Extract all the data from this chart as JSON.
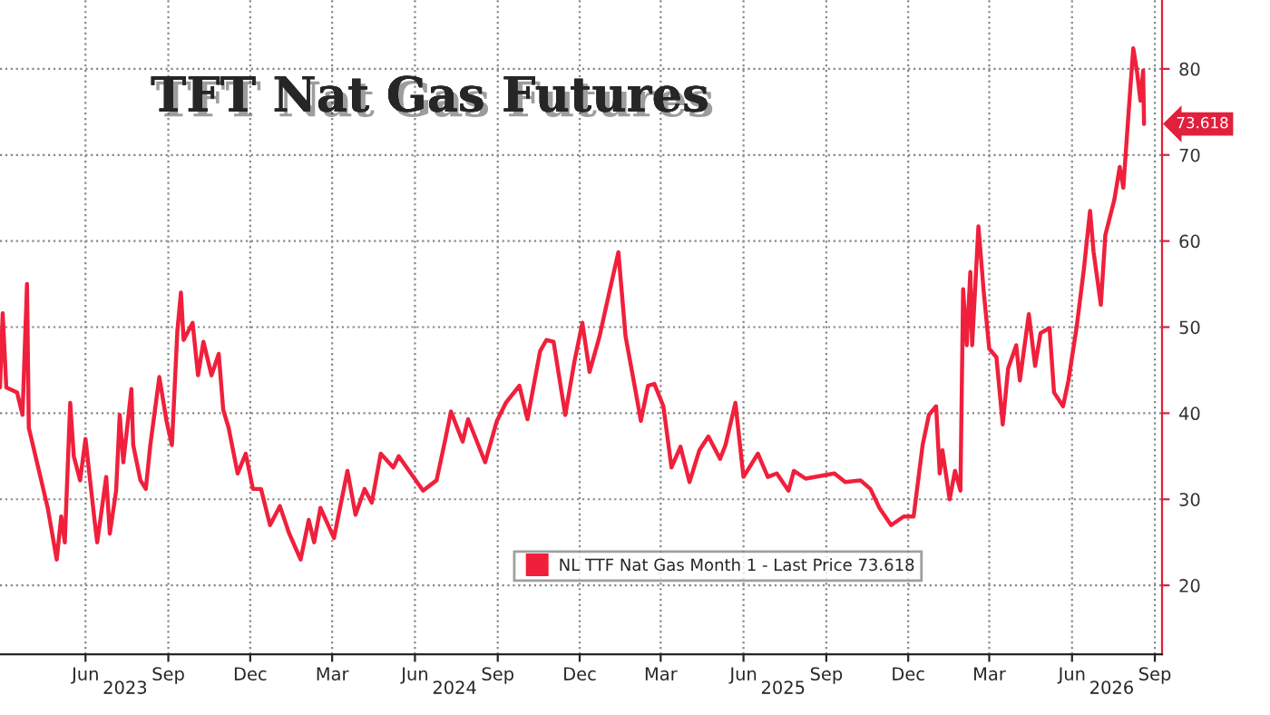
{
  "chart_data": {
    "type": "line",
    "title": "TFT Nat Gas Futures",
    "x": [
      "2023-02-26",
      "2023-03-01",
      "2023-03-05",
      "2023-03-17",
      "2023-03-23",
      "2023-03-28",
      "2023-03-30",
      "2023-04-11",
      "2023-04-20",
      "2023-04-30",
      "2023-05-05",
      "2023-05-09",
      "2023-05-15",
      "2023-05-19",
      "2023-05-26",
      "2023-06-01",
      "2023-06-11",
      "2023-06-14",
      "2023-06-24",
      "2023-06-28",
      "2023-07-05",
      "2023-07-09",
      "2023-07-13",
      "2023-07-22",
      "2023-07-24",
      "2023-08-01",
      "2023-08-07",
      "2023-08-12",
      "2023-08-22",
      "2023-08-30",
      "2023-09-05",
      "2023-09-11",
      "2023-09-15",
      "2023-09-18",
      "2023-09-28",
      "2023-10-04",
      "2023-10-10",
      "2023-10-19",
      "2023-10-27",
      "2023-11-01",
      "2023-11-07",
      "2023-11-17",
      "2023-11-26",
      "2023-12-04",
      "2023-12-13",
      "2023-12-23",
      "2024-01-03",
      "2024-01-13",
      "2024-01-26",
      "2024-02-04",
      "2024-02-10",
      "2024-02-17",
      "2024-03-03",
      "2024-03-18",
      "2024-03-27",
      "2024-04-06",
      "2024-04-14",
      "2024-04-24",
      "2024-05-08",
      "2024-05-14",
      "2024-06-10",
      "2024-06-25",
      "2024-07-05",
      "2024-07-11",
      "2024-07-24",
      "2024-07-30",
      "2024-08-18",
      "2024-08-31",
      "2024-09-10",
      "2024-09-25",
      "2024-10-04",
      "2024-10-18",
      "2024-10-25",
      "2024-11-02",
      "2024-11-15",
      "2024-11-25",
      "2024-12-04",
      "2024-12-12",
      "2024-12-23",
      "2025-01-02",
      "2025-01-13",
      "2025-01-21",
      "2025-01-31",
      "2025-02-07",
      "2025-02-15",
      "2025-02-22",
      "2025-03-04",
      "2025-03-13",
      "2025-03-23",
      "2025-04-02",
      "2025-04-13",
      "2025-04-23",
      "2025-05-06",
      "2025-05-12",
      "2025-05-23",
      "2025-06-01",
      "2025-06-17",
      "2025-06-28",
      "2025-07-08",
      "2025-07-21",
      "2025-07-27",
      "2025-08-09",
      "2025-09-10",
      "2025-09-22",
      "2025-10-09",
      "2025-10-20",
      "2025-10-30",
      "2025-11-12",
      "2025-11-26",
      "2025-12-07",
      "2025-12-17",
      "2025-12-24",
      "2026-01-01",
      "2026-01-05",
      "2026-01-08",
      "2026-01-16",
      "2026-01-22",
      "2026-01-28",
      "2026-01-31",
      "2026-02-04",
      "2026-02-08",
      "2026-02-10",
      "2026-02-17",
      "2026-02-23",
      "2026-03-01",
      "2026-03-09",
      "2026-03-16",
      "2026-03-22",
      "2026-03-31",
      "2026-04-04",
      "2026-04-14",
      "2026-04-21",
      "2026-04-27",
      "2026-05-07",
      "2026-05-12",
      "2026-05-22",
      "2026-05-28",
      "2026-06-06",
      "2026-06-14",
      "2026-06-21",
      "2026-06-25",
      "2026-07-03",
      "2026-07-08",
      "2026-07-18",
      "2026-07-24",
      "2026-07-28",
      "2026-08-02",
      "2026-08-08",
      "2026-08-12",
      "2026-08-16",
      "2026-08-19",
      "2026-08-20"
    ],
    "series": [
      {
        "name": "NL TTF Nat Gas Month 1 - Last Price 73.618",
        "color": "#f0203c",
        "values": [
          43,
          51.6,
          43,
          42.4,
          39.8,
          55,
          38.3,
          33,
          29,
          23,
          28,
          25,
          41.2,
          35,
          32.2,
          37,
          27.6,
          25,
          32.6,
          26,
          31,
          39.8,
          34.3,
          42.8,
          36.3,
          32.2,
          31.2,
          36.3,
          44.2,
          39.1,
          36.3,
          49.5,
          54,
          48.5,
          50.5,
          44.4,
          48.3,
          44.4,
          46.9,
          40.4,
          38.3,
          33,
          35.3,
          31.2,
          31.2,
          27,
          29.2,
          26.1,
          23,
          27.6,
          25,
          29,
          25.5,
          33.3,
          28.2,
          31.2,
          29.6,
          35.3,
          33.7,
          35,
          31,
          32.2,
          37.1,
          40.2,
          36.7,
          39.3,
          34.3,
          39.1,
          41.2,
          43.2,
          39.3,
          47.2,
          48.5,
          48.3,
          39.8,
          45.9,
          50.5,
          44.8,
          48.9,
          53.6,
          58.7,
          48.9,
          43.2,
          39.1,
          43.2,
          43.4,
          40.8,
          33.7,
          36.1,
          32,
          35.7,
          37.3,
          34.7,
          36.3,
          41.2,
          32.6,
          35.3,
          32.6,
          33,
          31,
          33.3,
          32.4,
          33,
          32,
          32.2,
          31.2,
          29,
          27,
          28,
          28,
          36.3,
          39.8,
          40.8,
          33,
          35.7,
          30,
          33.3,
          31,
          54.4,
          47.9,
          56.4,
          47.9,
          61.7,
          54,
          47.5,
          46.5,
          38.7,
          45.2,
          47.9,
          43.8,
          51.5,
          45.5,
          49.3,
          49.9,
          42.4,
          40.8,
          43.8,
          49.9,
          56.6,
          63.5,
          58.7,
          52.6,
          60.7,
          64.8,
          68.6,
          66.2,
          73.7,
          82.4,
          79.8,
          76.3,
          79.8,
          73.6
        ]
      }
    ],
    "xlim": [
      "2023-02-26",
      "2026-09-09"
    ],
    "xticks": [
      {
        "value": "2023-06-01",
        "label": "Jun"
      },
      {
        "value": "2023-09-01",
        "label": "Sep"
      },
      {
        "value": "2023-12-01",
        "label": "Dec"
      },
      {
        "value": "2024-03-01",
        "label": "Mar"
      },
      {
        "value": "2024-06-01",
        "label": "Jun"
      },
      {
        "value": "2024-09-01",
        "label": "Sep"
      },
      {
        "value": "2024-12-01",
        "label": "Dec"
      },
      {
        "value": "2025-03-01",
        "label": "Mar"
      },
      {
        "value": "2025-06-01",
        "label": "Jun"
      },
      {
        "value": "2025-09-01",
        "label": "Sep"
      },
      {
        "value": "2025-12-01",
        "label": "Dec"
      },
      {
        "value": "2026-03-01",
        "label": "Mar"
      },
      {
        "value": "2026-06-01",
        "label": "Jun"
      },
      {
        "value": "2026-09-01",
        "label": "Sep"
      }
    ],
    "x2lim": [
      "2023-02-26",
      "2026-09-09"
    ],
    "x2ticks": [
      {
        "value": "2023-07-15",
        "label": "2023"
      },
      {
        "value": "2024-07-15",
        "label": "2024"
      },
      {
        "value": "2025-07-15",
        "label": "2025"
      },
      {
        "value": "2026-07-15",
        "label": "2026"
      }
    ],
    "ylim": [
      12,
      88
    ],
    "yticks": [
      20,
      30,
      40,
      50,
      60,
      70,
      80
    ],
    "annotations": [
      {
        "text": "73.618",
        "x": "2026-08-20",
        "y": 73.6
      }
    ],
    "grid": true,
    "legend": "bottom right",
    "marker": "none",
    "line_style": "solid"
  }
}
